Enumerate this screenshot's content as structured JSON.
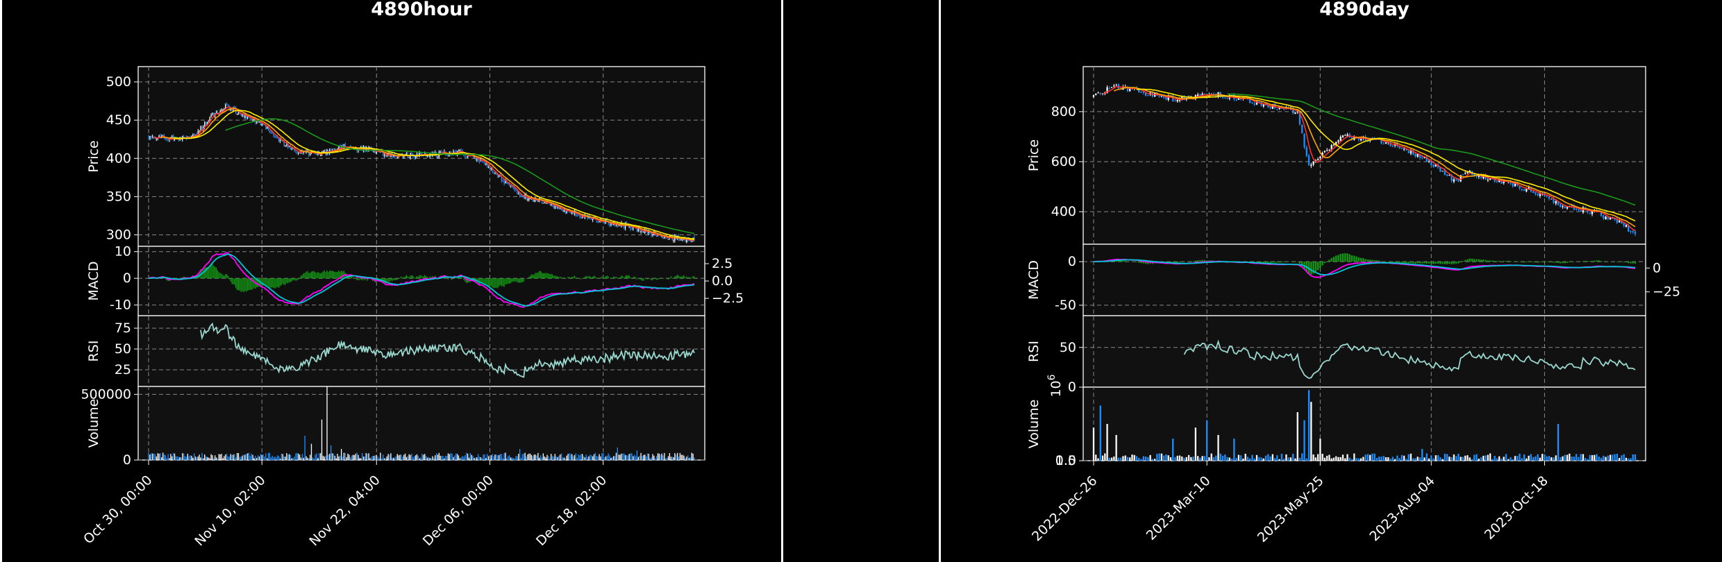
{
  "chart_data": [
    {
      "type": "candlestick",
      "title": "4890hour",
      "x_tick_labels": [
        "Oct 30, 00:00",
        "Nov 10, 02:00",
        "Nov 22, 04:00",
        "Dec 06, 00:00",
        "Dec 18, 02:00"
      ],
      "n_bars": 420,
      "panels": {
        "price": {
          "ylabel": "Price",
          "ylim": [
            285,
            520
          ],
          "yticks": [
            300,
            350,
            400,
            450,
            500
          ],
          "close_anchors": [
            [
              0,
              430
            ],
            [
              15,
              425
            ],
            [
              35,
              430
            ],
            [
              50,
              458
            ],
            [
              60,
              468
            ],
            [
              75,
              455
            ],
            [
              90,
              440
            ],
            [
              110,
              410
            ],
            [
              130,
              405
            ],
            [
              150,
              415
            ],
            [
              170,
              412
            ],
            [
              190,
              402
            ],
            [
              210,
              405
            ],
            [
              240,
              408
            ],
            [
              255,
              398
            ],
            [
              270,
              375
            ],
            [
              285,
              352
            ],
            [
              300,
              345
            ],
            [
              320,
              332
            ],
            [
              345,
              318
            ],
            [
              370,
              310
            ],
            [
              395,
              298
            ],
            [
              420,
              292
            ]
          ],
          "ma_colors": [
            "#ff3030",
            "#ffa500",
            "#ffee00",
            "#1a9a1a"
          ]
        },
        "macd": {
          "ylabel": "MACD",
          "ylim": [
            -14,
            12
          ],
          "yticks": [
            10,
            0,
            -10
          ],
          "right_yticks": [
            "2.5",
            "0.0",
            "−2.5"
          ]
        },
        "rsi": {
          "ylabel": "RSI",
          "ylim": [
            5,
            90
          ],
          "yticks": [
            75,
            50,
            25
          ]
        },
        "volume": {
          "ylabel": "Volume",
          "ylim": [
            0,
            560000
          ],
          "yticks": [
            500000,
            0
          ],
          "ytick_labels": [
            "500000",
            "0"
          ]
        }
      },
      "colors": {
        "up": "#ffffff",
        "down": "#1e90ff",
        "macd": "#ff00ff",
        "signal": "#00c8d7",
        "hist": "#11a011",
        "rsi": "#9ad9cf"
      }
    },
    {
      "type": "candlestick",
      "title": "4890day",
      "x_tick_labels": [
        "2022-Dec-26",
        "2023-Mar-10",
        "2023-May-25",
        "2023-Aug-04",
        "2023-Oct-18"
      ],
      "n_bars": 240,
      "panels": {
        "price": {
          "ylabel": "Price",
          "ylim": [
            270,
            980
          ],
          "yticks": [
            400,
            600,
            800
          ],
          "close_anchors": [
            [
              0,
              860
            ],
            [
              8,
              905
            ],
            [
              20,
              880
            ],
            [
              35,
              850
            ],
            [
              55,
              870
            ],
            [
              75,
              830
            ],
            [
              90,
              800
            ],
            [
              95,
              580
            ],
            [
              110,
              700
            ],
            [
              125,
              690
            ],
            [
              145,
              620
            ],
            [
              160,
              520
            ],
            [
              165,
              560
            ],
            [
              180,
              520
            ],
            [
              195,
              480
            ],
            [
              205,
              430
            ],
            [
              220,
              400
            ],
            [
              232,
              360
            ],
            [
              240,
              300
            ]
          ],
          "ma_colors": [
            "#ff3030",
            "#ffa500",
            "#ffee00",
            "#1a9a1a"
          ]
        },
        "macd": {
          "ylabel": "MACD",
          "ylim": [
            -62,
            20
          ],
          "yticks": [
            0,
            -50
          ],
          "right_yticks": [
            "0",
            "−25"
          ]
        },
        "rsi": {
          "ylabel": "RSI",
          "ylim": [
            0,
            90
          ],
          "yticks": [
            50,
            0
          ]
        },
        "volume": {
          "ylabel": "Volume",
          "ylim": [
            0,
            1250000
          ],
          "yticks": [
            1.0,
            0.5
          ],
          "ytick_labels": [
            "1.0",
            "0.5"
          ],
          "exponent_label": "10^6"
        }
      },
      "colors": {
        "up": "#ffffff",
        "down": "#1e90ff",
        "macd": "#ff00ff",
        "signal": "#00c8d7",
        "hist": "#11a011",
        "rsi": "#9ad9cf"
      }
    }
  ]
}
